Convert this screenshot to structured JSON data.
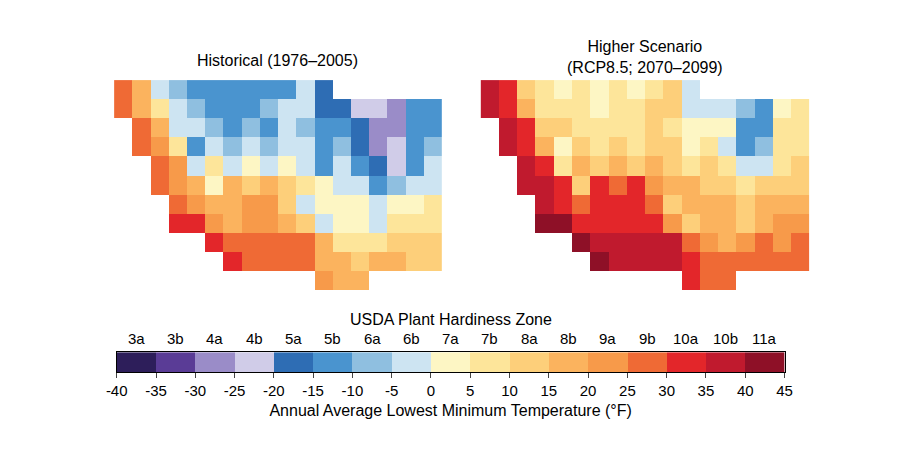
{
  "chart_data": {
    "type": "heatmap",
    "tick_labels": false,
    "panels": [
      {
        "title": "Historical (1976–2005)",
        "cells": [
          [
            27,
            18,
            -2,
            -8,
            -12,
            -10,
            -13,
            -10,
            -12,
            -10,
            -5,
            -20,
            null,
            null,
            null,
            null,
            null,
            null
          ],
          [
            26,
            20,
            5,
            -5,
            -8,
            -10,
            -12,
            -10,
            -8,
            -5,
            -3,
            -20,
            -18,
            -22,
            -25,
            -28,
            -15,
            -12
          ],
          [
            null,
            25,
            18,
            -3,
            -5,
            -8,
            -10,
            -8,
            -10,
            -5,
            -8,
            -15,
            -12,
            -18,
            -28,
            -30,
            -12,
            -10
          ],
          [
            null,
            28,
            22,
            5,
            -10,
            -5,
            -8,
            -5,
            -8,
            -3,
            -5,
            -15,
            -8,
            -20,
            -28,
            -25,
            -10,
            -8
          ],
          [
            null,
            null,
            25,
            22,
            -5,
            5,
            -2,
            0,
            -3,
            0,
            -5,
            -10,
            -5,
            -12,
            -20,
            -22,
            -10,
            -5
          ],
          [
            null,
            null,
            27,
            23,
            18,
            0,
            20,
            12,
            18,
            10,
            5,
            0,
            -3,
            -5,
            -10,
            -8,
            -5,
            -3
          ],
          [
            null,
            null,
            null,
            28,
            22,
            15,
            18,
            22,
            22,
            12,
            -3,
            0,
            3,
            0,
            -5,
            0,
            3,
            5
          ],
          [
            null,
            null,
            null,
            32,
            30,
            22,
            20,
            22,
            22,
            18,
            10,
            -5,
            0,
            0,
            -2,
            5,
            7,
            8
          ],
          [
            null,
            null,
            null,
            null,
            null,
            33,
            28,
            27,
            26,
            25,
            25,
            15,
            8,
            5,
            8,
            12,
            10,
            12
          ],
          [
            null,
            null,
            null,
            null,
            null,
            null,
            33,
            28,
            28,
            25,
            25,
            20,
            15,
            12,
            15,
            15,
            12,
            14
          ],
          [
            null,
            null,
            null,
            null,
            null,
            null,
            null,
            null,
            null,
            null,
            null,
            22,
            15,
            15,
            null,
            null,
            null,
            null
          ]
        ]
      },
      {
        "title": "Higher Scenario\n(RCP8.5; 2070–2099)",
        "cells": [
          [
            37,
            30,
            12,
            5,
            2,
            5,
            2,
            5,
            3,
            5,
            10,
            -5,
            null,
            null,
            null,
            null,
            null,
            null
          ],
          [
            36,
            32,
            18,
            8,
            6,
            5,
            3,
            5,
            7,
            10,
            12,
            -5,
            -2,
            -5,
            -8,
            -12,
            2,
            5
          ],
          [
            null,
            36,
            30,
            12,
            10,
            7,
            5,
            7,
            5,
            10,
            7,
            0,
            3,
            0,
            -10,
            -12,
            5,
            7
          ],
          [
            null,
            38,
            34,
            18,
            2,
            10,
            7,
            10,
            7,
            12,
            10,
            0,
            8,
            -3,
            -10,
            -8,
            7,
            8
          ],
          [
            null,
            null,
            37,
            34,
            8,
            18,
            12,
            15,
            12,
            15,
            10,
            5,
            10,
            5,
            -3,
            -5,
            7,
            12
          ],
          [
            null,
            null,
            38,
            35,
            30,
            12,
            33,
            25,
            30,
            22,
            18,
            15,
            12,
            12,
            7,
            10,
            12,
            14
          ],
          [
            null,
            null,
            null,
            39,
            34,
            27,
            30,
            34,
            34,
            25,
            12,
            15,
            17,
            15,
            12,
            15,
            18,
            20
          ],
          [
            null,
            null,
            null,
            42,
            40,
            34,
            32,
            34,
            34,
            30,
            23,
            10,
            15,
            15,
            13,
            20,
            22,
            22
          ],
          [
            null,
            null,
            null,
            null,
            null,
            42,
            38,
            38,
            37,
            36,
            36,
            28,
            22,
            20,
            22,
            25,
            24,
            25
          ],
          [
            null,
            null,
            null,
            null,
            null,
            null,
            42,
            38,
            38,
            36,
            36,
            33,
            28,
            25,
            28,
            28,
            25,
            27
          ],
          [
            null,
            null,
            null,
            null,
            null,
            null,
            null,
            null,
            null,
            null,
            null,
            33,
            28,
            28,
            null,
            null,
            null,
            null
          ]
        ]
      }
    ],
    "colorbar": {
      "title": "USDA Plant Hardiness Zone",
      "label": "Annual Average Lowest Minimum Temperature (°F)",
      "range": [
        -40,
        45
      ],
      "ticks": [
        -40,
        -35,
        -30,
        -25,
        -20,
        -15,
        -10,
        -5,
        0,
        5,
        10,
        15,
        20,
        25,
        30,
        35,
        40,
        45
      ],
      "zone_labels": [
        "3a",
        "3b",
        "4a",
        "4b",
        "5a",
        "5b",
        "6a",
        "6b",
        "7a",
        "7b",
        "8a",
        "8b",
        "9a",
        "9b",
        "10a",
        "10b",
        "11a"
      ],
      "colors": [
        "#2d1e5a",
        "#5a3c96",
        "#9a8cc8",
        "#d0cce8",
        "#2e6db4",
        "#4a94cf",
        "#8fbfe0",
        "#cde4f2",
        "#fdf6c4",
        "#fde59a",
        "#fdcf7a",
        "#fbb35e",
        "#f79a4a",
        "#ef6a35",
        "#e3262a",
        "#c01a2e",
        "#8e1027"
      ]
    }
  }
}
